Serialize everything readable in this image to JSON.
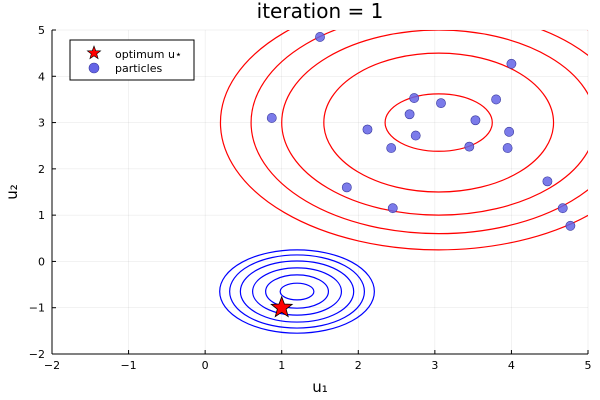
{
  "chart_data": {
    "type": "scatter",
    "title": "iteration = 1",
    "xlabel": "u₁",
    "ylabel": "u₂",
    "xlim": [
      -2,
      5
    ],
    "ylim": [
      -2,
      5
    ],
    "xticks": [
      -2,
      -1,
      0,
      1,
      2,
      3,
      4,
      5
    ],
    "yticks": [
      -2,
      -1,
      0,
      1,
      2,
      3,
      4,
      5
    ],
    "xtick_labels": [
      "−2",
      "−1",
      "0",
      "1",
      "2",
      "3",
      "4",
      "5"
    ],
    "ytick_labels": [
      "−2",
      "−1",
      "0",
      "1",
      "2",
      "3",
      "4",
      "5"
    ],
    "grid": true,
    "legend_position": "top-left",
    "legend": [
      {
        "label": "optimum u⋆",
        "marker": "star",
        "color": "#ff0000"
      },
      {
        "label": "particles",
        "marker": "circle",
        "color": "#6464e6"
      }
    ],
    "optimum": {
      "x": 1.0,
      "y": -1.0,
      "color": "#ff0000"
    },
    "particles": {
      "color": "#6464e6",
      "points": [
        [
          1.5,
          4.85
        ],
        [
          4.0,
          4.27
        ],
        [
          0.87,
          3.1
        ],
        [
          2.73,
          3.53
        ],
        [
          3.08,
          3.42
        ],
        [
          3.8,
          3.5
        ],
        [
          2.67,
          3.18
        ],
        [
          3.53,
          3.05
        ],
        [
          2.12,
          2.85
        ],
        [
          2.75,
          2.72
        ],
        [
          3.97,
          2.8
        ],
        [
          2.43,
          2.45
        ],
        [
          3.45,
          2.48
        ],
        [
          3.95,
          2.45
        ],
        [
          1.85,
          1.6
        ],
        [
          4.47,
          1.73
        ],
        [
          2.45,
          1.15
        ],
        [
          4.67,
          1.15
        ],
        [
          4.77,
          0.77
        ]
      ]
    },
    "contours": [
      {
        "name": "blue",
        "color": "#0000ff",
        "center": [
          1.2,
          -0.65
        ],
        "radii_x": [
          0.22,
          0.41,
          0.58,
          0.74,
          0.88,
          1.01
        ],
        "radii_y": [
          0.18,
          0.36,
          0.51,
          0.66,
          0.79,
          0.9
        ]
      },
      {
        "name": "red",
        "color": "#ff0000",
        "center": [
          3.05,
          3.0
        ],
        "radii_x": [
          0.7,
          1.5,
          2.05,
          2.45,
          2.85
        ],
        "radii_y": [
          0.62,
          1.5,
          2.0,
          2.4,
          2.75
        ]
      }
    ]
  }
}
